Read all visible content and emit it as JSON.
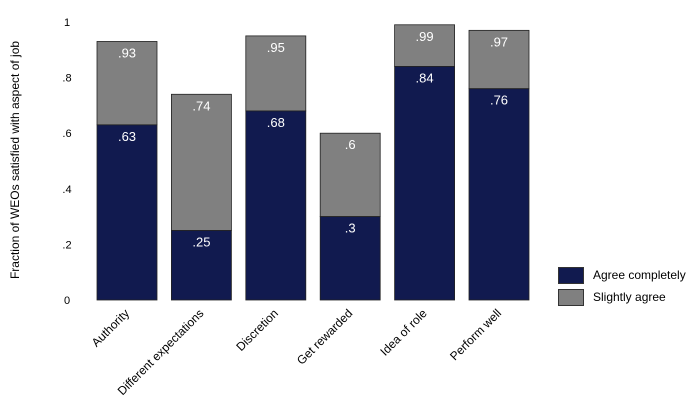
{
  "chart_data": {
    "type": "bar",
    "stacked": true,
    "ylabel": "Fraction of WEOs satisfied with aspect of job",
    "ylim": [
      0,
      1
    ],
    "yticks": [
      0,
      0.2,
      0.4,
      0.6,
      0.8,
      1
    ],
    "ytick_labels": [
      "0",
      ".2",
      ".4",
      ".6",
      ".8",
      "1"
    ],
    "categories": [
      "Authority",
      "Different expectations",
      "Discretion",
      "Get rewarded",
      "Idea of role",
      "Perform well"
    ],
    "series": [
      {
        "name": "Agree completely",
        "color": "#111a4f",
        "values": [
          0.63,
          0.25,
          0.68,
          0.3,
          0.84,
          0.76
        ],
        "labels": [
          ".63",
          ".25",
          ".68",
          ".3",
          ".84",
          ".76"
        ]
      },
      {
        "name": "Slightly agree",
        "color": "#808080",
        "cumulative_values": [
          0.93,
          0.74,
          0.95,
          0.6,
          0.99,
          0.97
        ],
        "labels": [
          ".93",
          ".74",
          ".95",
          ".6",
          ".99",
          ".97"
        ]
      }
    ],
    "grid": false,
    "legend_position": "bottom-right"
  }
}
